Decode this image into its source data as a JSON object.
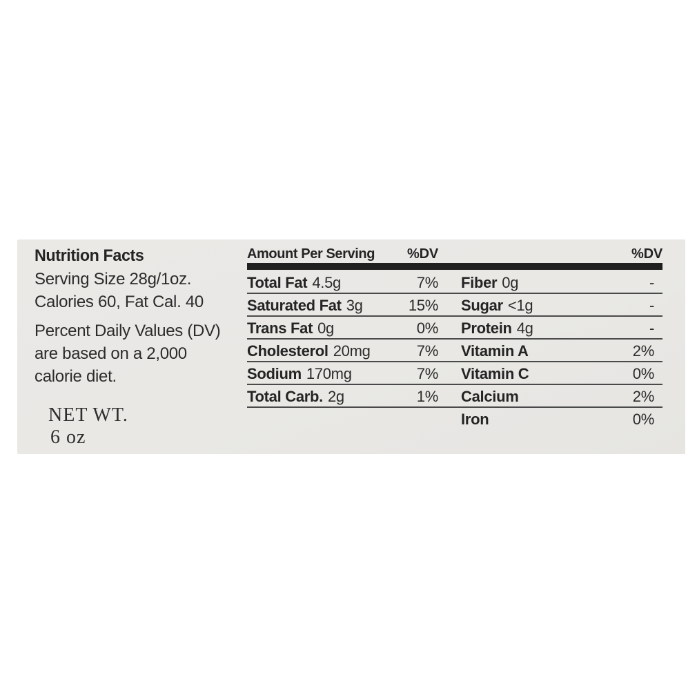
{
  "colors": {
    "label_bg": "#e9e8e5",
    "text": "#242424",
    "bar": "#202020",
    "line": "#4a4a4a"
  },
  "label": {
    "title": "Nutrition Facts",
    "serving_size": "Serving Size 28g/1oz.",
    "calories_line": "Calories 60, Fat Cal. 40",
    "dv_note_lines": [
      "Percent Daily Values (DV)",
      "are based on a 2,000",
      "calorie diet."
    ],
    "net_wt_label": "NET WT.",
    "net_wt_value": "6 oz"
  },
  "table": {
    "header": {
      "amount_per_serving": "Amount Per Serving",
      "dv_left": "%DV",
      "dv_right": "%DV"
    },
    "left_rows": [
      {
        "name": "Total Fat",
        "amount": "4.5g",
        "dv": "7%"
      },
      {
        "name": "Saturated Fat",
        "amount": "3g",
        "dv": "15%"
      },
      {
        "name": "Trans Fat",
        "amount": "0g",
        "dv": "0%"
      },
      {
        "name": "Cholesterol",
        "amount": "20mg",
        "dv": "7%"
      },
      {
        "name": "Sodium",
        "amount": "170mg",
        "dv": "7%"
      },
      {
        "name": "Total Carb.",
        "amount": "2g",
        "dv": "1%"
      }
    ],
    "right_rows": [
      {
        "name": "Fiber",
        "amount": "0g",
        "dv": "-"
      },
      {
        "name": "Sugar",
        "amount": "<1g",
        "dv": "-"
      },
      {
        "name": "Protein",
        "amount": "4g",
        "dv": "-"
      },
      {
        "name": "Vitamin A",
        "amount": "",
        "dv": "2%"
      },
      {
        "name": "Vitamin C",
        "amount": "",
        "dv": "0%"
      },
      {
        "name": "Calcium",
        "amount": "",
        "dv": "2%"
      },
      {
        "name": "Iron",
        "amount": "",
        "dv": "0%"
      }
    ]
  }
}
